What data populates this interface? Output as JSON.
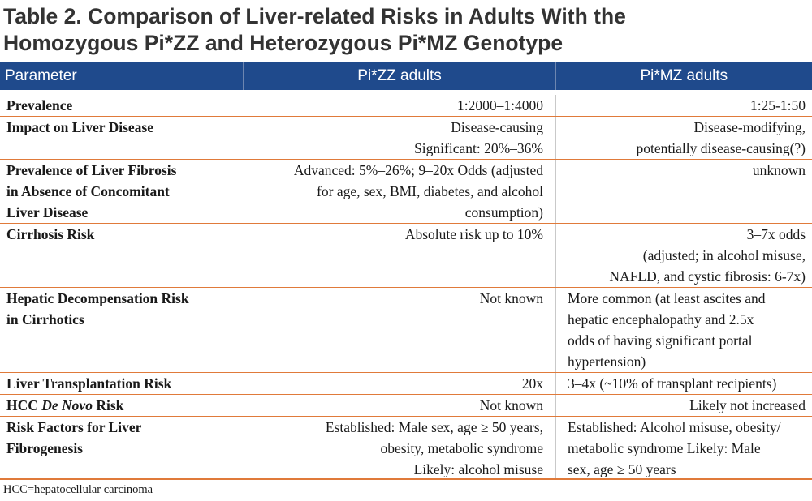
{
  "title": {
    "line1": "Table 2. Comparison of Liver-related Risks in Adults With the",
    "line2": "Homozygous Pi*ZZ and Heterozygous Pi*MZ Genotype"
  },
  "header": {
    "parameter": "Parameter",
    "zz": "Pi*ZZ adults",
    "mz": "Pi*MZ adults"
  },
  "rows": [
    {
      "parameter": [
        "Prevalence"
      ],
      "zz": [
        "1:2000–1:4000"
      ],
      "mz": [
        "1:25-1:50"
      ]
    },
    {
      "parameter": [
        "Impact on Liver Disease"
      ],
      "zz": [
        "Disease-causing",
        "Significant: 20%–36%"
      ],
      "mz": [
        "Disease-modifying,",
        "potentially disease-causing(?)"
      ]
    },
    {
      "parameter": [
        "Prevalence of Liver Fibrosis",
        "in Absence of Concomitant",
        "Liver Disease"
      ],
      "zz": [
        "Advanced: 5%–26%; 9–20x Odds (adjusted",
        "for age, sex, BMI, diabetes, and alcohol",
        "consumption)"
      ],
      "mz": [
        "unknown"
      ]
    },
    {
      "parameter": [
        "Cirrhosis Risk"
      ],
      "zz": [
        "Absolute risk up to 10%"
      ],
      "mz": [
        "3–7x odds",
        "(adjusted; in alcohol misuse,",
        "NAFLD, and cystic fibrosis: 6-7x)"
      ]
    },
    {
      "parameter": [
        "Hepatic Decompensation Risk",
        "in Cirrhotics"
      ],
      "zz": [
        "Not known"
      ],
      "mz": [
        "More common (at least ascites and",
        "hepatic encephalopathy and 2.5x",
        "odds of having significant portal",
        "hypertension)"
      ]
    },
    {
      "parameter": [
        "Liver Transplantation Risk"
      ],
      "zz": [
        "20x"
      ],
      "mz": [
        "3–4x (~10% of transplant recipients)"
      ]
    },
    {
      "parameter_prefix": "HCC ",
      "parameter_italic": "De Novo",
      "parameter_suffix": " Risk",
      "zz": [
        "Not known"
      ],
      "mz": [
        "Likely not increased"
      ]
    },
    {
      "parameter": [
        "Risk Factors for Liver",
        "Fibrogenesis"
      ],
      "zz": [
        "Established: Male sex, age ≥ 50 years,",
        "obesity, metabolic syndrome",
        "Likely: alcohol misuse"
      ],
      "mz": [
        "Established: Alcohol misuse, obesity/",
        "metabolic syndrome Likely: Male",
        "sex, age ≥ 50 years"
      ]
    }
  ],
  "footnote": "HCC=hepatocellular carcinoma",
  "colors": {
    "header_bg": "#1f4a8c",
    "row_rule": "#e07a3a",
    "title_text": "#333333"
  }
}
